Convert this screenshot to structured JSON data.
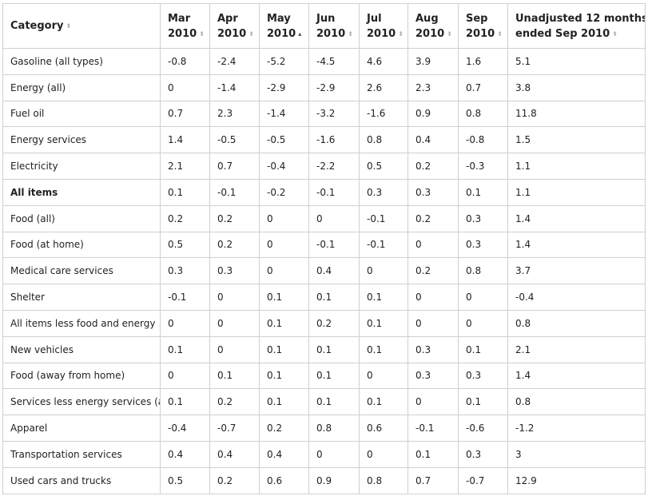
{
  "table": {
    "columns": [
      {
        "line1": "Category",
        "line2": "",
        "sort": "unsorted"
      },
      {
        "line1": "Mar",
        "line2": "2010",
        "sort": "unsorted"
      },
      {
        "line1": "Apr",
        "line2": "2010",
        "sort": "unsorted"
      },
      {
        "line1": "May",
        "line2": "2010",
        "sort": "ascending"
      },
      {
        "line1": "Jun",
        "line2": "2010",
        "sort": "unsorted"
      },
      {
        "line1": "Jul",
        "line2": "2010",
        "sort": "unsorted"
      },
      {
        "line1": "Aug",
        "line2": "2010",
        "sort": "unsorted"
      },
      {
        "line1": "Sep",
        "line2": "2010",
        "sort": "unsorted"
      },
      {
        "line1": "Unadjusted 12 months",
        "line2": "ended Sep 2010",
        "sort": "unsorted"
      }
    ],
    "rows": [
      {
        "category": "Gasoline (all types)",
        "values": [
          "-0.8",
          "-2.4",
          "-5.2",
          "-4.5",
          "4.6",
          "3.9",
          "1.6",
          "5.1"
        ]
      },
      {
        "category": "Energy (all)",
        "values": [
          "0",
          "-1.4",
          "-2.9",
          "-2.9",
          "2.6",
          "2.3",
          "0.7",
          "3.8"
        ]
      },
      {
        "category": "Fuel oil",
        "values": [
          "0.7",
          "2.3",
          "-1.4",
          "-3.2",
          "-1.6",
          "0.9",
          "0.8",
          "11.8"
        ]
      },
      {
        "category": "Energy services",
        "values": [
          "1.4",
          "-0.5",
          "-0.5",
          "-1.6",
          "0.8",
          "0.4",
          "-0.8",
          "1.5"
        ]
      },
      {
        "category": "Electricity",
        "values": [
          "2.1",
          "0.7",
          "-0.4",
          "-2.2",
          "0.5",
          "0.2",
          "-0.3",
          "1.1"
        ]
      },
      {
        "category": "All items",
        "bold": true,
        "values": [
          "0.1",
          "-0.1",
          "-0.2",
          "-0.1",
          "0.3",
          "0.3",
          "0.1",
          "1.1"
        ]
      },
      {
        "category": "Food (all)",
        "values": [
          "0.2",
          "0.2",
          "0",
          "0",
          "-0.1",
          "0.2",
          "0.3",
          "1.4"
        ]
      },
      {
        "category": "Food (at home)",
        "values": [
          "0.5",
          "0.2",
          "0",
          "-0.1",
          "-0.1",
          "0",
          "0.3",
          "1.4"
        ]
      },
      {
        "category": "Medical care services",
        "values": [
          "0.3",
          "0.3",
          "0",
          "0.4",
          "0",
          "0.2",
          "0.8",
          "3.7"
        ]
      },
      {
        "category": "Shelter",
        "values": [
          "-0.1",
          "0",
          "0.1",
          "0.1",
          "0.1",
          "0",
          "0",
          "-0.4"
        ]
      },
      {
        "category": "All items less food and energy",
        "values": [
          "0",
          "0",
          "0.1",
          "0.2",
          "0.1",
          "0",
          "0",
          "0.8"
        ]
      },
      {
        "category": "New vehicles",
        "values": [
          "0.1",
          "0",
          "0.1",
          "0.1",
          "0.1",
          "0.3",
          "0.1",
          "2.1"
        ]
      },
      {
        "category": "Food (away from home)",
        "values": [
          "0",
          "0.1",
          "0.1",
          "0.1",
          "0",
          "0.3",
          "0.3",
          "1.4"
        ]
      },
      {
        "category": "Services less energy services (all)",
        "values": [
          "0.1",
          "0.2",
          "0.1",
          "0.1",
          "0.1",
          "0",
          "0.1",
          "0.8"
        ]
      },
      {
        "category": "Apparel",
        "values": [
          "-0.4",
          "-0.7",
          "0.2",
          "0.8",
          "0.6",
          "-0.1",
          "-0.6",
          "-1.2"
        ]
      },
      {
        "category": "Transportation services",
        "values": [
          "0.4",
          "0.4",
          "0.4",
          "0",
          "0",
          "0.1",
          "0.3",
          "3"
        ]
      },
      {
        "category": "Used cars and trucks",
        "values": [
          "0.5",
          "0.2",
          "0.6",
          "0.9",
          "0.8",
          "0.7",
          "-0.7",
          "12.9"
        ]
      }
    ]
  },
  "icons": {
    "sort_unsorted": "sort-updown-icon",
    "sort_ascending": "sort-ascending-icon"
  },
  "colors": {
    "border": "#d0d0d0",
    "text": "#222222",
    "sort_inactive": "#b0b0b0",
    "sort_active": "#444444"
  }
}
